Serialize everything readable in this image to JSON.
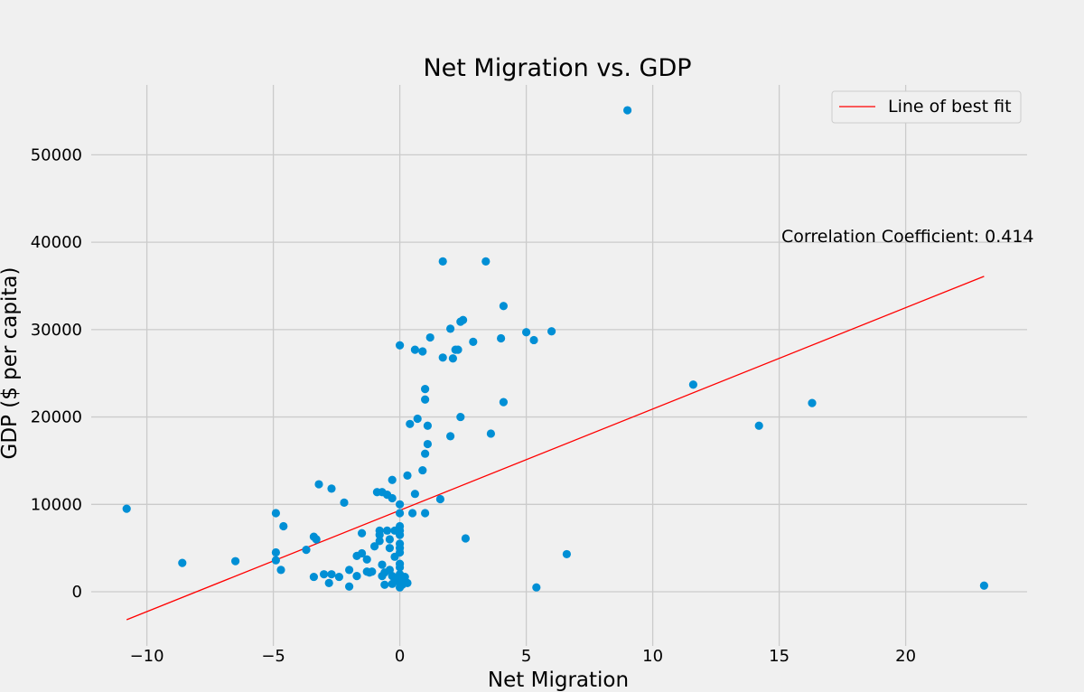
{
  "chart_data": {
    "type": "scatter",
    "title": "Net Migration vs. GDP",
    "xlabel": "Net Migration",
    "ylabel": "GDP ($ per capita)",
    "xlim": [
      -12.2,
      24.8
    ],
    "ylim": [
      -6200,
      58000
    ],
    "xticks": [
      -10,
      -5,
      0,
      5,
      10,
      15,
      20
    ],
    "yticks": [
      0,
      10000,
      20000,
      30000,
      40000,
      50000
    ],
    "xtick_labels": [
      "−10",
      "−5",
      "0",
      "5",
      "10",
      "15",
      "20"
    ],
    "ytick_labels": [
      "0",
      "10000",
      "20000",
      "30000",
      "40000",
      "50000"
    ],
    "grid": true,
    "legend": {
      "placement": "top-right",
      "entries": [
        "Line of best fit"
      ]
    },
    "annotation": "Correlation Coefficient: 0.414",
    "colors": {
      "points": "#008fd5",
      "fit_line": "#ff0000",
      "background": "#f0f0f0",
      "grid": "#cbcbcb"
    },
    "best_fit": {
      "x": [
        -10.8,
        23.1
      ],
      "y": [
        -3200,
        36100
      ]
    },
    "points": [
      [
        -10.8,
        9500
      ],
      [
        -8.6,
        3300
      ],
      [
        -6.5,
        3500
      ],
      [
        -4.9,
        9000
      ],
      [
        -4.9,
        4500
      ],
      [
        -4.9,
        3600
      ],
      [
        -4.6,
        7500
      ],
      [
        -4.7,
        2500
      ],
      [
        -3.7,
        4800
      ],
      [
        -3.4,
        6300
      ],
      [
        -3.3,
        6000
      ],
      [
        -3.2,
        12300
      ],
      [
        -3.4,
        1700
      ],
      [
        -3.0,
        2000
      ],
      [
        -2.8,
        1000
      ],
      [
        -2.7,
        11800
      ],
      [
        -2.7,
        2000
      ],
      [
        -2.4,
        1700
      ],
      [
        -2.2,
        10200
      ],
      [
        -2.0,
        600
      ],
      [
        -2.0,
        2500
      ],
      [
        -1.7,
        1800
      ],
      [
        -1.7,
        4100
      ],
      [
        -1.5,
        4400
      ],
      [
        -1.5,
        6700
      ],
      [
        -1.3,
        3700
      ],
      [
        -1.3,
        2300
      ],
      [
        -1.2,
        2200
      ],
      [
        -1.1,
        2300
      ],
      [
        -1.0,
        5200
      ],
      [
        -0.9,
        11400
      ],
      [
        -0.8,
        7000
      ],
      [
        -0.8,
        6500
      ],
      [
        -0.8,
        5800
      ],
      [
        -0.7,
        11400
      ],
      [
        -0.7,
        3100
      ],
      [
        -0.7,
        1800
      ],
      [
        -0.6,
        800
      ],
      [
        -0.6,
        2200
      ],
      [
        -0.5,
        7000
      ],
      [
        -0.5,
        11100
      ],
      [
        -0.4,
        2500
      ],
      [
        -0.4,
        5000
      ],
      [
        -0.4,
        6000
      ],
      [
        -0.3,
        10700
      ],
      [
        -0.3,
        12800
      ],
      [
        -0.3,
        1800
      ],
      [
        -0.3,
        900
      ],
      [
        -0.2,
        7000
      ],
      [
        -0.2,
        4000
      ],
      [
        -0.1,
        1500
      ],
      [
        0.0,
        5500
      ],
      [
        0.0,
        4500
      ],
      [
        0.0,
        3200
      ],
      [
        0.0,
        7000
      ],
      [
        0.0,
        7500
      ],
      [
        0.0,
        10000
      ],
      [
        0.0,
        9000
      ],
      [
        0.0,
        2800
      ],
      [
        0.0,
        2000
      ],
      [
        0.0,
        1500
      ],
      [
        0.0,
        1000
      ],
      [
        0.0,
        500
      ],
      [
        0.0,
        28200
      ],
      [
        0.0,
        6500
      ],
      [
        0.0,
        5000
      ],
      [
        0.1,
        1200
      ],
      [
        0.1,
        800
      ],
      [
        0.2,
        1700
      ],
      [
        0.3,
        1000
      ],
      [
        0.3,
        13300
      ],
      [
        0.4,
        19200
      ],
      [
        0.5,
        9000
      ],
      [
        0.6,
        11200
      ],
      [
        0.6,
        27700
      ],
      [
        0.7,
        19800
      ],
      [
        0.9,
        13900
      ],
      [
        0.9,
        27500
      ],
      [
        1.0,
        23200
      ],
      [
        1.0,
        22000
      ],
      [
        1.0,
        15800
      ],
      [
        1.0,
        9000
      ],
      [
        1.1,
        16900
      ],
      [
        1.1,
        19000
      ],
      [
        1.2,
        29100
      ],
      [
        1.6,
        10600
      ],
      [
        1.7,
        26800
      ],
      [
        1.7,
        37800
      ],
      [
        2.0,
        30100
      ],
      [
        2.0,
        17800
      ],
      [
        2.1,
        26700
      ],
      [
        2.2,
        27700
      ],
      [
        2.3,
        27700
      ],
      [
        2.4,
        20000
      ],
      [
        2.4,
        30900
      ],
      [
        2.5,
        31100
      ],
      [
        2.6,
        6100
      ],
      [
        2.9,
        28600
      ],
      [
        3.4,
        37800
      ],
      [
        3.6,
        18100
      ],
      [
        4.0,
        29000
      ],
      [
        4.1,
        32700
      ],
      [
        4.1,
        21700
      ],
      [
        5.0,
        29700
      ],
      [
        5.3,
        28800
      ],
      [
        5.4,
        500
      ],
      [
        6.0,
        29800
      ],
      [
        6.6,
        4300
      ],
      [
        9.0,
        55100
      ],
      [
        11.6,
        23700
      ],
      [
        14.2,
        19000
      ],
      [
        16.3,
        21600
      ],
      [
        23.1,
        700
      ]
    ]
  }
}
